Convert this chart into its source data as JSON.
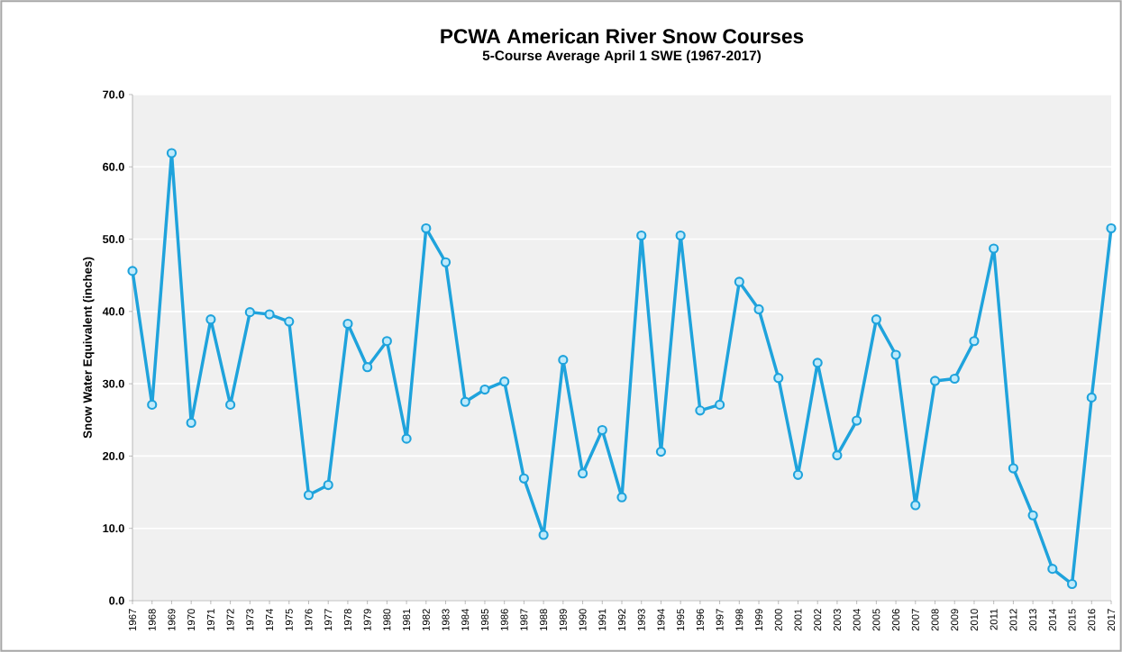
{
  "chart_data": {
    "type": "line",
    "title": "PCWA American River Snow Courses",
    "subtitle": "5-Course Average April 1 SWE (1967-2017)",
    "ylabel": "Snow Water Equivalent (inches)",
    "categories": [
      "1967",
      "1968",
      "1969",
      "1970",
      "1971",
      "1972",
      "1973",
      "1974",
      "1975",
      "1976",
      "1977",
      "1978",
      "1979",
      "1980",
      "1981",
      "1982",
      "1983",
      "1984",
      "1985",
      "1986",
      "1987",
      "1988",
      "1989",
      "1990",
      "1991",
      "1992",
      "1993",
      "1994",
      "1995",
      "1996",
      "1997",
      "1998",
      "1999",
      "2000",
      "2001",
      "2002",
      "2003",
      "2004",
      "2005",
      "2006",
      "2007",
      "2008",
      "2009",
      "2010",
      "2011",
      "2012",
      "2013",
      "2014",
      "2015",
      "2016",
      "2017"
    ],
    "values": [
      45.6,
      27.1,
      61.9,
      24.6,
      38.9,
      27.1,
      39.9,
      39.6,
      38.6,
      14.6,
      16.0,
      38.3,
      32.3,
      35.9,
      22.4,
      51.5,
      46.8,
      27.5,
      29.2,
      30.3,
      16.9,
      9.1,
      33.3,
      17.6,
      23.6,
      14.3,
      50.5,
      20.6,
      50.5,
      26.3,
      27.1,
      44.1,
      40.3,
      30.8,
      17.4,
      32.9,
      20.1,
      24.9,
      38.9,
      34.0,
      13.2,
      30.4,
      30.7,
      35.9,
      48.7,
      18.3,
      11.8,
      4.4,
      2.3,
      28.1,
      51.5
    ],
    "color": "#1fa3dc",
    "ylim": [
      0,
      70
    ],
    "yticks": [
      {
        "value": 0,
        "label": "0.0"
      },
      {
        "value": 10,
        "label": "10.0"
      },
      {
        "value": 20,
        "label": "20.0"
      },
      {
        "value": 30,
        "label": "30.0"
      },
      {
        "value": 40,
        "label": "40.0"
      },
      {
        "value": 50,
        "label": "50.0"
      },
      {
        "value": 60,
        "label": "60.0"
      },
      {
        "value": 70,
        "label": "70.0"
      }
    ],
    "grid": "y",
    "marker": "circle",
    "line_style": "solid"
  }
}
